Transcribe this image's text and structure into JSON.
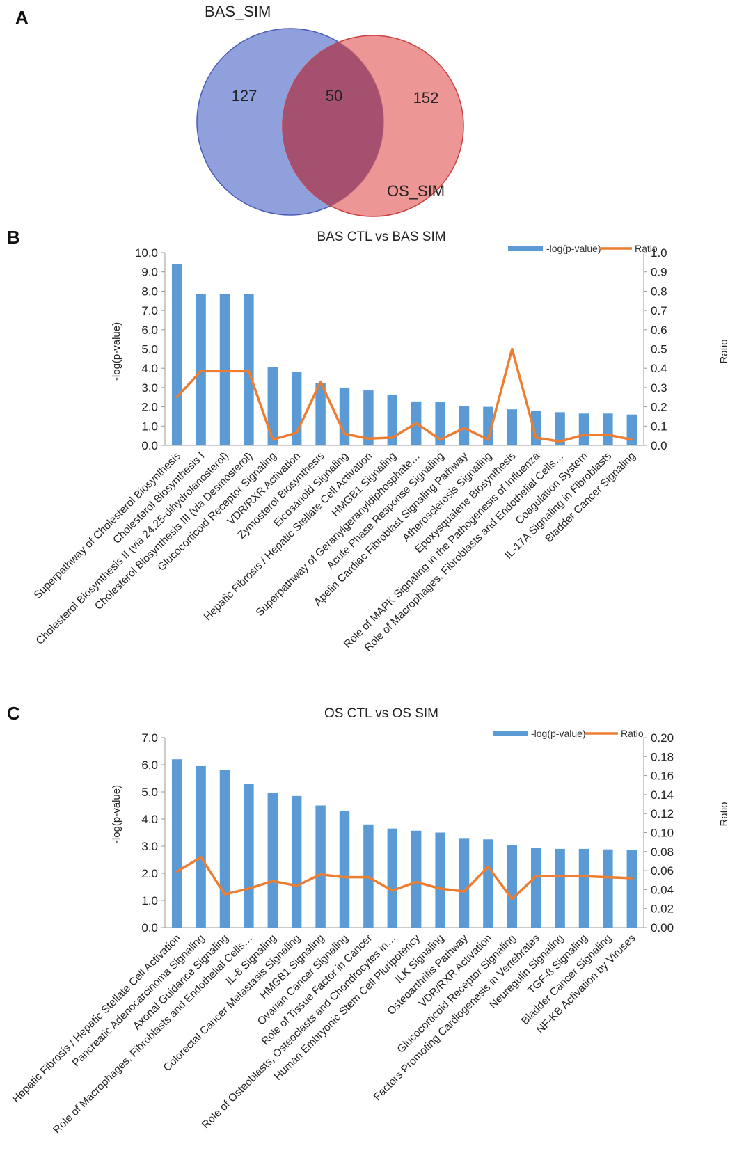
{
  "venn": {
    "panel_label": "A",
    "left_label": "BAS_SIM",
    "right_label": "OS_SIM",
    "left_only": "127",
    "intersection": "50",
    "right_only": "152",
    "left_color": "#7b8fd6",
    "right_color": "#e57373"
  },
  "chart_data": [
    {
      "type": "bar",
      "panel_label": "B",
      "title": "BAS CTL vs BAS SIM",
      "ylabel": "-log(p-value)",
      "y2label": "Ratio",
      "ylim": [
        0,
        10
      ],
      "y2lim": [
        0,
        1
      ],
      "yticks": [
        "0.0",
        "1.0",
        "2.0",
        "3.0",
        "4.0",
        "5.0",
        "6.0",
        "7.0",
        "8.0",
        "9.0",
        "10.0"
      ],
      "y2ticks": [
        "0.0",
        "0.1",
        "0.2",
        "0.3",
        "0.4",
        "0.5",
        "0.6",
        "0.7",
        "0.8",
        "0.9",
        "1.0"
      ],
      "legend_placement": "top-right",
      "grid": false,
      "categories": [
        "Superpathway of Cholesterol Biosynthesis",
        "Cholesterol Biosynthesis I",
        "Cholesterol Biosynthesis II (via 24,25-dihydrolanosterol)",
        "Cholesterol Biosynthesis III (via Desmosterol)",
        "Glucocorticoid Receptor Signaling",
        "VDR/RXR Activation",
        "Zymosterol Biosynthesis",
        "Eicosanoid Signaling",
        "Hepatic Fibrosis / Hepatic Stellate Cell Activation",
        "HMGB1 Signaling",
        "Superpathway of Geranylgeranyldiphosphate…",
        "Acute Phase Response Signaling",
        "Apelin Cardiac Fibroblast Signaling Pathway",
        "Atherosclerosis Signaling",
        "Epoxysqualene Biosynthesis",
        "Role of MAPK Signaling in the Pathogenesis of Influenza",
        "Role of Macrophages, Fibroblasts and Endothelial Cells…",
        "Coagulation System",
        "IL-17A Signaling in Fibroblasts",
        "Bladder Cancer Signaling"
      ],
      "series": [
        {
          "name": "-log(p-value)",
          "kind": "bar",
          "color": "#5b9bd5",
          "values": [
            9.4,
            7.85,
            7.85,
            7.85,
            4.05,
            3.8,
            3.25,
            3.0,
            2.85,
            2.6,
            2.28,
            2.24,
            2.05,
            2.0,
            1.87,
            1.8,
            1.72,
            1.65,
            1.65,
            1.6
          ]
        },
        {
          "name": "Ratio",
          "kind": "line",
          "axis": "right",
          "color": "#ed7d31",
          "values": [
            0.25,
            0.385,
            0.385,
            0.385,
            0.03,
            0.065,
            0.33,
            0.06,
            0.035,
            0.04,
            0.115,
            0.03,
            0.09,
            0.03,
            0.5,
            0.04,
            0.02,
            0.055,
            0.055,
            0.03
          ]
        }
      ]
    },
    {
      "type": "bar",
      "panel_label": "C",
      "title": "OS CTL vs OS SIM",
      "ylabel": "-log(p-value)",
      "y2label": "Ratio",
      "ylim": [
        0,
        7
      ],
      "y2lim": [
        0,
        0.2
      ],
      "yticks": [
        "0.0",
        "1.0",
        "2.0",
        "3.0",
        "4.0",
        "5.0",
        "6.0",
        "7.0"
      ],
      "y2ticks": [
        "0.00",
        "0.02",
        "0.04",
        "0.06",
        "0.08",
        "0.10",
        "0.12",
        "0.14",
        "0.16",
        "0.18",
        "0.20"
      ],
      "legend_placement": "top-right",
      "grid": false,
      "categories": [
        "Hepatic Fibrosis / Hepatic Stellate Cell Activation",
        "Pancreatic Adenocarcinoma Signaling",
        "Axonal Guidance Signaling",
        "Role of Macrophages, Fibroblasts and Endothelial Cells…",
        "IL-8 Signaling",
        "Colorectal Cancer Metastasis Signaling",
        "HMGB1 Signaling",
        "Ovarian Cancer Signaling",
        "Role of Tissue Factor in Cancer",
        "Role of Osteoblasts, Osteoclasts and Chondrocytes in…",
        "Human Embryonic Stem Cell Pluripotency",
        "ILK Signaling",
        "Osteoarthritis Pathway",
        "VDR/RXR Activation",
        "Glucocorticoid Receptor Signaling",
        "Factors Promoting Cardiogenesis in Vertebrates",
        "Neuregulin Signaling",
        "TGF-ß Signaling",
        "Bladder Cancer Signaling",
        "NF-KB Activation by Viruses"
      ],
      "series": [
        {
          "name": "-log(p-value)",
          "kind": "bar",
          "color": "#5b9bd5",
          "values": [
            6.2,
            5.95,
            5.8,
            5.3,
            4.95,
            4.85,
            4.5,
            4.3,
            3.8,
            3.65,
            3.57,
            3.5,
            3.3,
            3.25,
            3.03,
            2.93,
            2.9,
            2.9,
            2.88,
            2.85
          ]
        },
        {
          "name": "Ratio",
          "kind": "line",
          "axis": "right",
          "color": "#ed7d31",
          "values": [
            0.059,
            0.074,
            0.035,
            0.041,
            0.049,
            0.044,
            0.056,
            0.053,
            0.053,
            0.039,
            0.048,
            0.041,
            0.038,
            0.064,
            0.03,
            0.054,
            0.054,
            0.054,
            0.053,
            0.052
          ]
        }
      ]
    }
  ]
}
